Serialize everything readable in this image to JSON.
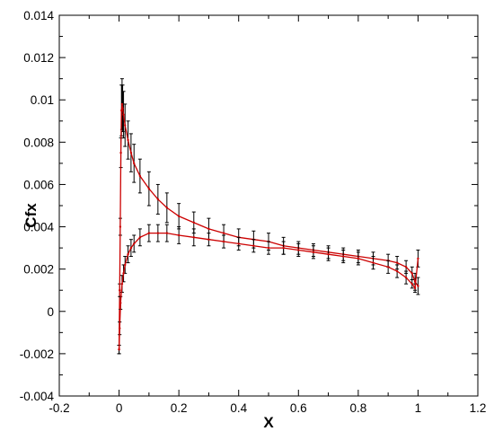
{
  "chart_data": {
    "type": "line",
    "title": "",
    "xlabel": "X",
    "ylabel": "Cfx",
    "xlim": [
      -0.2,
      1.2
    ],
    "ylim": [
      -0.004,
      0.014
    ],
    "xticks": [
      -0.2,
      0,
      0.2,
      0.4,
      0.6,
      0.8,
      1,
      1.2
    ],
    "xtick_labels": [
      "-0.2",
      "0",
      "0.2",
      "0.4",
      "0.6",
      "0.8",
      "1",
      "1.2"
    ],
    "yticks": [
      -0.004,
      -0.002,
      0,
      0.002,
      0.004,
      0.006,
      0.008,
      0.01,
      0.012,
      0.014
    ],
    "ytick_labels": [
      "-0.004",
      "-0.002",
      "0",
      "0.002",
      "0.004",
      "0.006",
      "0.008",
      "0.01",
      "0.012",
      "0.014"
    ],
    "grid": false,
    "legend": "none",
    "series": [
      {
        "color": "#cc0000",
        "error_bar_color": "#000000",
        "x": [
          0.0,
          0.002,
          0.004,
          0.006,
          0.008,
          0.01,
          0.012,
          0.015,
          0.02,
          0.03,
          0.04,
          0.05,
          0.07,
          0.1,
          0.13,
          0.16,
          0.2,
          0.25,
          0.3,
          0.35,
          0.4,
          0.45,
          0.5,
          0.55,
          0.6,
          0.65,
          0.7,
          0.75,
          0.8,
          0.85,
          0.9,
          0.93,
          0.96,
          0.98,
          0.99,
          1.0
        ],
        "y": [
          -0.0018,
          0.001,
          0.004,
          0.0075,
          0.0095,
          0.0098,
          0.0096,
          0.0093,
          0.0088,
          0.0081,
          0.0075,
          0.007,
          0.0064,
          0.0058,
          0.0053,
          0.0049,
          0.0045,
          0.0042,
          0.0039,
          0.0037,
          0.0035,
          0.0034,
          0.0033,
          0.0031,
          0.003,
          0.0029,
          0.0028,
          0.0027,
          0.0026,
          0.0025,
          0.0024,
          0.0023,
          0.0021,
          0.0018,
          0.0014,
          0.0012
        ],
        "error": [
          0.0002,
          0.0003,
          0.0004,
          0.0007,
          0.0012,
          0.0012,
          0.0011,
          0.0011,
          0.001,
          0.0009,
          0.0009,
          0.0009,
          0.0008,
          0.0008,
          0.0007,
          0.0007,
          0.0006,
          0.0005,
          0.0005,
          0.0004,
          0.0004,
          0.0004,
          0.0004,
          0.0004,
          0.0003,
          0.0003,
          0.0003,
          0.0003,
          0.0003,
          0.0003,
          0.0003,
          0.0003,
          0.0003,
          0.0003,
          0.0004,
          0.0004
        ]
      },
      {
        "color": "#cc0000",
        "error_bar_color": "#000000",
        "x": [
          0.0,
          0.002,
          0.005,
          0.01,
          0.015,
          0.02,
          0.03,
          0.04,
          0.05,
          0.07,
          0.1,
          0.13,
          0.16,
          0.2,
          0.25,
          0.3,
          0.35,
          0.4,
          0.45,
          0.5,
          0.55,
          0.6,
          0.65,
          0.7,
          0.75,
          0.8,
          0.85,
          0.9,
          0.93,
          0.96,
          0.98,
          0.99,
          1.0
        ],
        "y": [
          -0.0018,
          -0.0008,
          0.0004,
          0.0013,
          0.0018,
          0.0022,
          0.0027,
          0.003,
          0.0032,
          0.0035,
          0.0037,
          0.0037,
          0.0037,
          0.0036,
          0.0035,
          0.0034,
          0.0033,
          0.0032,
          0.0031,
          0.003,
          0.003,
          0.0029,
          0.0028,
          0.0027,
          0.0026,
          0.0025,
          0.0023,
          0.0021,
          0.0019,
          0.0016,
          0.0013,
          0.0011,
          0.0025
        ],
        "error": [
          0.0002,
          0.0003,
          0.0003,
          0.0004,
          0.0004,
          0.0004,
          0.0004,
          0.0004,
          0.0004,
          0.0004,
          0.0004,
          0.0004,
          0.0004,
          0.0004,
          0.0004,
          0.0003,
          0.0003,
          0.0003,
          0.0003,
          0.0003,
          0.0003,
          0.0003,
          0.0003,
          0.0003,
          0.0003,
          0.0003,
          0.0003,
          0.0003,
          0.0003,
          0.0003,
          0.0002,
          0.0002,
          0.0004
        ]
      }
    ]
  }
}
